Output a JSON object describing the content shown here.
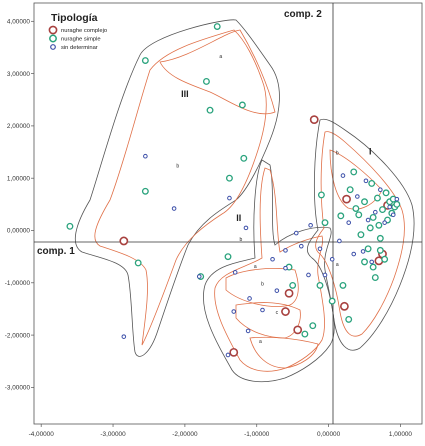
{
  "chart_data": {
    "type": "scatter",
    "title": "",
    "xlabel": "comp. 1",
    "ylabel": "comp. 2",
    "xlim": [
      -4.1,
      1.3
    ],
    "ylim": [
      -3.7,
      4.35
    ],
    "grid": false,
    "legend_position": "top-left",
    "x_ticks": [
      "-4,00000",
      "-3,00000",
      "-2,00000",
      "-1,00000",
      "0,00000",
      "1,00000"
    ],
    "y_ticks": [
      "4,00000",
      "3,00000",
      "2,00000",
      "1,00000",
      "0,00000",
      "-1,00000",
      "-2,00000",
      "-3,00000"
    ],
    "x_tick_values": [
      -4,
      -3,
      -2,
      -1,
      0,
      1
    ],
    "y_tick_values": [
      4,
      3,
      2,
      1,
      0,
      -1,
      -2,
      -3
    ],
    "legend": {
      "title": "Tipología",
      "entries": [
        {
          "label": "nuraghe complejo",
          "color": "#a8413f"
        },
        {
          "label": "nuraghe simple",
          "color": "#2aa37d"
        },
        {
          "label": "sin determinar",
          "color": "#3b4ea8"
        }
      ]
    },
    "annotations": [
      {
        "text": "III",
        "x": -2.0,
        "y": 2.55,
        "size": 9,
        "bold": true
      },
      {
        "text": "II",
        "x": -1.25,
        "y": 0.18,
        "size": 9,
        "bold": true
      },
      {
        "text": "I",
        "x": 0.58,
        "y": 1.45,
        "size": 9,
        "bold": true
      },
      {
        "text": "a",
        "x": -1.5,
        "y": 3.3,
        "size": 5,
        "bold": false
      },
      {
        "text": "b",
        "x": -2.1,
        "y": 1.2,
        "size": 5,
        "bold": false
      },
      {
        "text": "b",
        "x": 0.12,
        "y": 1.45,
        "size": 5,
        "bold": false
      },
      {
        "text": "b",
        "x": -1.22,
        "y": -0.2,
        "size": 5,
        "bold": false
      },
      {
        "text": "a",
        "x": -1.02,
        "y": -0.72,
        "size": 5,
        "bold": false
      },
      {
        "text": "b",
        "x": -0.92,
        "y": -1.05,
        "size": 5,
        "bold": false
      },
      {
        "text": "c",
        "x": -0.72,
        "y": -1.6,
        "size": 5,
        "bold": false
      },
      {
        "text": "a",
        "x": -0.95,
        "y": -2.15,
        "size": 5,
        "bold": false
      },
      {
        "text": "a",
        "x": 0.12,
        "y": -0.68,
        "size": 5,
        "bold": false
      }
    ],
    "series": [
      {
        "name": "nuraghe complejo",
        "color": "#a8413f",
        "points": [
          [
            -2.85,
            -0.2
          ],
          [
            -0.6,
            -1.55
          ],
          [
            -1.32,
            -2.33
          ],
          [
            -0.55,
            -1.2
          ],
          [
            -0.43,
            -1.9
          ],
          [
            -0.2,
            2.12
          ],
          [
            0.22,
            -1.45
          ],
          [
            0.25,
            0.6
          ],
          [
            0.7,
            -0.58
          ],
          [
            0.75,
            -0.45
          ],
          [
            0.82,
            0.48
          ]
        ]
      },
      {
        "name": "nuraghe simple",
        "color": "#2aa37d",
        "points": [
          [
            -1.55,
            3.9
          ],
          [
            -2.55,
            3.25
          ],
          [
            -1.7,
            2.85
          ],
          [
            -1.2,
            2.4
          ],
          [
            -1.65,
            2.3
          ],
          [
            -3.6,
            0.08
          ],
          [
            -2.55,
            0.75
          ],
          [
            -2.65,
            -0.62
          ],
          [
            -1.38,
            1.0
          ],
          [
            -1.18,
            1.38
          ],
          [
            -1.78,
            -0.88
          ],
          [
            -1.4,
            -0.5
          ],
          [
            -0.1,
            0.68
          ],
          [
            -0.55,
            -0.7
          ],
          [
            -0.5,
            -1.05
          ],
          [
            -0.12,
            -1.05
          ],
          [
            0.05,
            -1.35
          ],
          [
            -0.22,
            -1.82
          ],
          [
            -0.33,
            -1.98
          ],
          [
            -0.05,
            0.15
          ],
          [
            0.17,
            0.28
          ],
          [
            0.2,
            -1.05
          ],
          [
            0.28,
            -1.7
          ],
          [
            0.3,
            0.78
          ],
          [
            0.35,
            1.12
          ],
          [
            0.38,
            0.42
          ],
          [
            0.45,
            -0.08
          ],
          [
            0.5,
            0.55
          ],
          [
            0.55,
            -0.35
          ],
          [
            0.6,
            0.9
          ],
          [
            0.62,
            0.25
          ],
          [
            0.68,
            0.62
          ],
          [
            0.7,
            0.1
          ],
          [
            0.72,
            -0.38
          ],
          [
            0.75,
            0.4
          ],
          [
            0.8,
            0.72
          ],
          [
            0.82,
            0.2
          ],
          [
            0.85,
            0.55
          ],
          [
            0.88,
            0.33
          ],
          [
            0.9,
            0.6
          ],
          [
            0.92,
            0.45
          ],
          [
            0.78,
            -0.55
          ],
          [
            0.65,
            -0.9
          ],
          [
            0.58,
            0.05
          ],
          [
            0.42,
            0.3
          ],
          [
            0.5,
            -0.6
          ],
          [
            0.95,
            0.5
          ],
          [
            0.72,
            -0.15
          ],
          [
            0.62,
            -0.7
          ]
        ]
      },
      {
        "name": "sin determinar",
        "color": "#3b4ea8",
        "points": [
          [
            -2.85,
            -2.03
          ],
          [
            -2.15,
            0.42
          ],
          [
            -2.55,
            1.42
          ],
          [
            -1.4,
            -2.38
          ],
          [
            -1.38,
            0.62
          ],
          [
            -1.15,
            0.05
          ],
          [
            -1.8,
            -0.88
          ],
          [
            -1.3,
            -0.8
          ],
          [
            -1.32,
            -1.55
          ],
          [
            -1.1,
            -1.3
          ],
          [
            -1.12,
            -1.92
          ],
          [
            -0.92,
            -1.52
          ],
          [
            -0.72,
            -1.15
          ],
          [
            -0.78,
            -0.55
          ],
          [
            -0.6,
            -0.38
          ],
          [
            -0.6,
            -0.72
          ],
          [
            -0.45,
            -0.05
          ],
          [
            -0.38,
            -0.3
          ],
          [
            -0.28,
            -0.85
          ],
          [
            -0.25,
            0.1
          ],
          [
            -0.12,
            -0.35
          ],
          [
            0.05,
            -0.55
          ],
          [
            0.15,
            -0.2
          ],
          [
            0.2,
            1.05
          ],
          [
            0.28,
            0.15
          ],
          [
            0.35,
            -0.45
          ],
          [
            0.4,
            0.65
          ],
          [
            0.48,
            -0.4
          ],
          [
            0.52,
            0.95
          ],
          [
            0.6,
            -0.6
          ],
          [
            0.65,
            0.35
          ],
          [
            0.72,
            0.78
          ],
          [
            0.78,
            0.15
          ],
          [
            0.85,
            0.45
          ],
          [
            0.9,
            0.3
          ],
          [
            0.95,
            0.6
          ],
          [
            0.55,
            0.2
          ],
          [
            -0.05,
            -0.85
          ]
        ]
      }
    ]
  }
}
